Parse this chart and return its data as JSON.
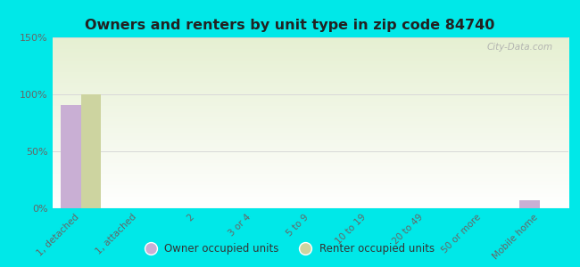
{
  "title": "Owners and renters by unit type in zip code 84740",
  "categories": [
    "1, detached",
    "1, attached",
    "2",
    "3 or 4",
    "5 to 9",
    "10 to 19",
    "20 to 49",
    "50 or more",
    "Mobile home"
  ],
  "owner_values": [
    91,
    0,
    0,
    0,
    0,
    0,
    0,
    0,
    7
  ],
  "renter_values": [
    100,
    0,
    0,
    0,
    0,
    0,
    0,
    0,
    0
  ],
  "owner_color": "#c9afd4",
  "renter_color": "#cdd4a0",
  "ylim": [
    0,
    150
  ],
  "yticks": [
    0,
    50,
    100,
    150
  ],
  "ytick_labels": [
    "0%",
    "50%",
    "100%",
    "150%"
  ],
  "grid_color": "#d8d8d8",
  "bar_width": 0.35,
  "legend_owner": "Owner occupied units",
  "legend_renter": "Renter occupied units",
  "watermark": "City-Data.com",
  "outer_bg": "#00e8e8",
  "title_color": "#222222"
}
